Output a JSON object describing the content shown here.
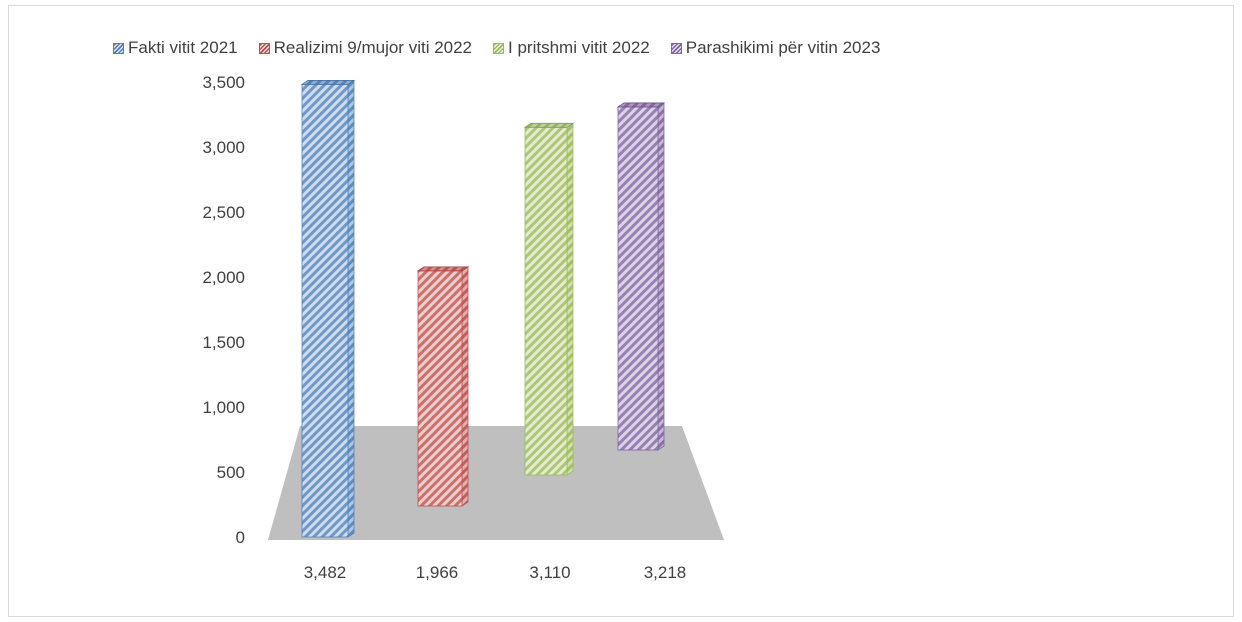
{
  "chart_data": {
    "type": "bar",
    "categories": [
      "3,482",
      "1,966",
      "3,110",
      "3,218"
    ],
    "series": [
      {
        "name": "Fakti vitit 2021",
        "values": [
          3482,
          null,
          null,
          null
        ],
        "color": "#4f81bd"
      },
      {
        "name": "Realizimi 9/mujor viti 2022",
        "values": [
          null,
          1966,
          null,
          null
        ],
        "color": "#c0504d"
      },
      {
        "name": "I pritshmi vitit 2022",
        "values": [
          null,
          null,
          3110,
          null
        ],
        "color": "#9bbb59"
      },
      {
        "name": "Parashikimi për vitin 2023",
        "values": [
          null,
          null,
          null,
          3218
        ],
        "color": "#8064a2"
      }
    ],
    "ylim": [
      0,
      3500
    ],
    "yticks": [
      "0",
      "500",
      "1,000",
      "1,500",
      "2,000",
      "2,500",
      "3,000",
      "3,500"
    ],
    "legend_position": "top",
    "grid": false,
    "style": "3d-column"
  }
}
